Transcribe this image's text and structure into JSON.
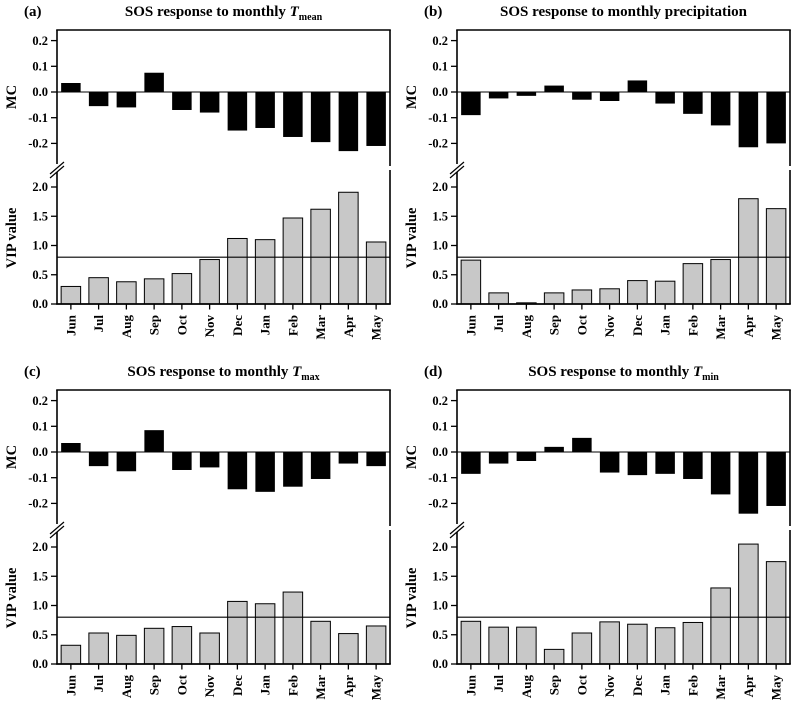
{
  "style": {
    "background": "#ffffff",
    "axis_color": "#000000",
    "mc_bar_color": "#000000",
    "vip_bar_fill": "#c8c8c8",
    "vip_bar_stroke": "#000000"
  },
  "chart_data": [
    {
      "panel_label": "(a)",
      "title": "SOS response to monthly Tmean",
      "title_prefix": "SOS response to monthly ",
      "title_symbol": "T",
      "title_sub": "mean",
      "type": "bar",
      "broken_y_axis": true,
      "legend": "none",
      "categories": [
        "Jun",
        "Jul",
        "Aug",
        "Sep",
        "Oct",
        "Nov",
        "Dec",
        "Jan",
        "Feb",
        "Mar",
        "Apr",
        "May"
      ],
      "series": [
        {
          "name": "MC",
          "axis": "top",
          "ylabel": "MC",
          "ylim": [
            -0.27,
            0.25
          ],
          "ytick_labels": [
            "0.2",
            "0.1",
            "0.0",
            "-0.1",
            "-0.2"
          ],
          "bar_color": "#000000",
          "values": [
            0.035,
            -0.055,
            -0.06,
            0.075,
            -0.07,
            -0.08,
            -0.15,
            -0.14,
            -0.175,
            -0.195,
            -0.23,
            -0.21
          ]
        },
        {
          "name": "VIP value",
          "axis": "bottom",
          "ylabel": "VIP value",
          "ylim": [
            0,
            2.2
          ],
          "ytick_labels": [
            "2.0",
            "1.5",
            "1.0",
            "0.5",
            "0.0"
          ],
          "bar_color": "#c8c8c8",
          "bar_border": "#000000",
          "ref_line": 0.8,
          "values": [
            0.3,
            0.45,
            0.38,
            0.43,
            0.52,
            0.76,
            1.12,
            1.1,
            1.47,
            1.62,
            1.91,
            1.06
          ]
        }
      ]
    },
    {
      "panel_label": "(b)",
      "title": "SOS response to monthly precipitation",
      "title_prefix": "SOS response to monthly precipitation",
      "title_symbol": "",
      "title_sub": "",
      "type": "bar",
      "broken_y_axis": true,
      "legend": "none",
      "categories": [
        "Jun",
        "Jul",
        "Aug",
        "Sep",
        "Oct",
        "Nov",
        "Dec",
        "Jan",
        "Feb",
        "Mar",
        "Apr",
        "May"
      ],
      "series": [
        {
          "name": "MC",
          "axis": "top",
          "ylabel": "MC",
          "ylim": [
            -0.27,
            0.25
          ],
          "ytick_labels": [
            "0.2",
            "0.1",
            "0.0",
            "-0.1",
            "-0.2"
          ],
          "bar_color": "#000000",
          "values": [
            -0.09,
            -0.025,
            -0.015,
            0.025,
            -0.03,
            -0.035,
            0.045,
            -0.045,
            -0.085,
            -0.13,
            -0.215,
            -0.2
          ]
        },
        {
          "name": "VIP value",
          "axis": "bottom",
          "ylabel": "VIP value",
          "ylim": [
            0,
            2.2
          ],
          "ytick_labels": [
            "2.0",
            "1.5",
            "1.0",
            "0.5",
            "0.0"
          ],
          "bar_color": "#c8c8c8",
          "bar_border": "#000000",
          "ref_line": 0.8,
          "values": [
            0.75,
            0.19,
            0.02,
            0.19,
            0.24,
            0.26,
            0.4,
            0.39,
            0.69,
            0.76,
            1.8,
            1.63
          ]
        }
      ]
    },
    {
      "panel_label": "(c)",
      "title": "SOS response to monthly Tmax",
      "title_prefix": "SOS response to monthly ",
      "title_symbol": "T",
      "title_sub": "max",
      "type": "bar",
      "broken_y_axis": true,
      "legend": "none",
      "categories": [
        "Jun",
        "Jul",
        "Aug",
        "Sep",
        "Oct",
        "Nov",
        "Dec",
        "Jan",
        "Feb",
        "Mar",
        "Apr",
        "May"
      ],
      "series": [
        {
          "name": "MC",
          "axis": "top",
          "ylabel": "MC",
          "ylim": [
            -0.27,
            0.25
          ],
          "ytick_labels": [
            "0.2",
            "0.1",
            "0.0",
            "-0.1",
            "-0.2"
          ],
          "bar_color": "#000000",
          "values": [
            0.035,
            -0.055,
            -0.075,
            0.085,
            -0.07,
            -0.06,
            -0.145,
            -0.155,
            -0.135,
            -0.105,
            -0.045,
            -0.055
          ]
        },
        {
          "name": "VIP value",
          "axis": "bottom",
          "ylabel": "VIP value",
          "ylim": [
            0,
            2.2
          ],
          "ytick_labels": [
            "2.0",
            "1.5",
            "1.0",
            "0.5",
            "0.0"
          ],
          "bar_color": "#c8c8c8",
          "bar_border": "#000000",
          "ref_line": 0.8,
          "values": [
            0.32,
            0.53,
            0.49,
            0.61,
            0.64,
            0.53,
            1.07,
            1.03,
            1.23,
            0.73,
            0.52,
            0.65
          ]
        }
      ]
    },
    {
      "panel_label": "(d)",
      "title": "SOS response to monthly Tmin",
      "title_prefix": "SOS response to monthly ",
      "title_symbol": "T",
      "title_sub": "min",
      "type": "bar",
      "broken_y_axis": true,
      "legend": "none",
      "categories": [
        "Jun",
        "Jul",
        "Aug",
        "Sep",
        "Oct",
        "Nov",
        "Dec",
        "Jan",
        "Feb",
        "Mar",
        "Apr",
        "May"
      ],
      "series": [
        {
          "name": "MC",
          "axis": "top",
          "ylabel": "MC",
          "ylim": [
            -0.27,
            0.25
          ],
          "ytick_labels": [
            "0.2",
            "0.1",
            "0.0",
            "-0.1",
            "-0.2"
          ],
          "bar_color": "#000000",
          "values": [
            -0.085,
            -0.045,
            -0.035,
            0.02,
            0.055,
            -0.08,
            -0.09,
            -0.085,
            -0.105,
            -0.165,
            -0.24,
            -0.21
          ]
        },
        {
          "name": "VIP value",
          "axis": "bottom",
          "ylabel": "VIP value",
          "ylim": [
            0,
            2.2
          ],
          "ytick_labels": [
            "2.0",
            "1.5",
            "1.0",
            "0.5",
            "0.0"
          ],
          "bar_color": "#c8c8c8",
          "bar_border": "#000000",
          "ref_line": 0.8,
          "values": [
            0.73,
            0.63,
            0.63,
            0.25,
            0.53,
            0.72,
            0.68,
            0.62,
            0.71,
            1.3,
            2.05,
            1.75
          ]
        }
      ]
    }
  ]
}
